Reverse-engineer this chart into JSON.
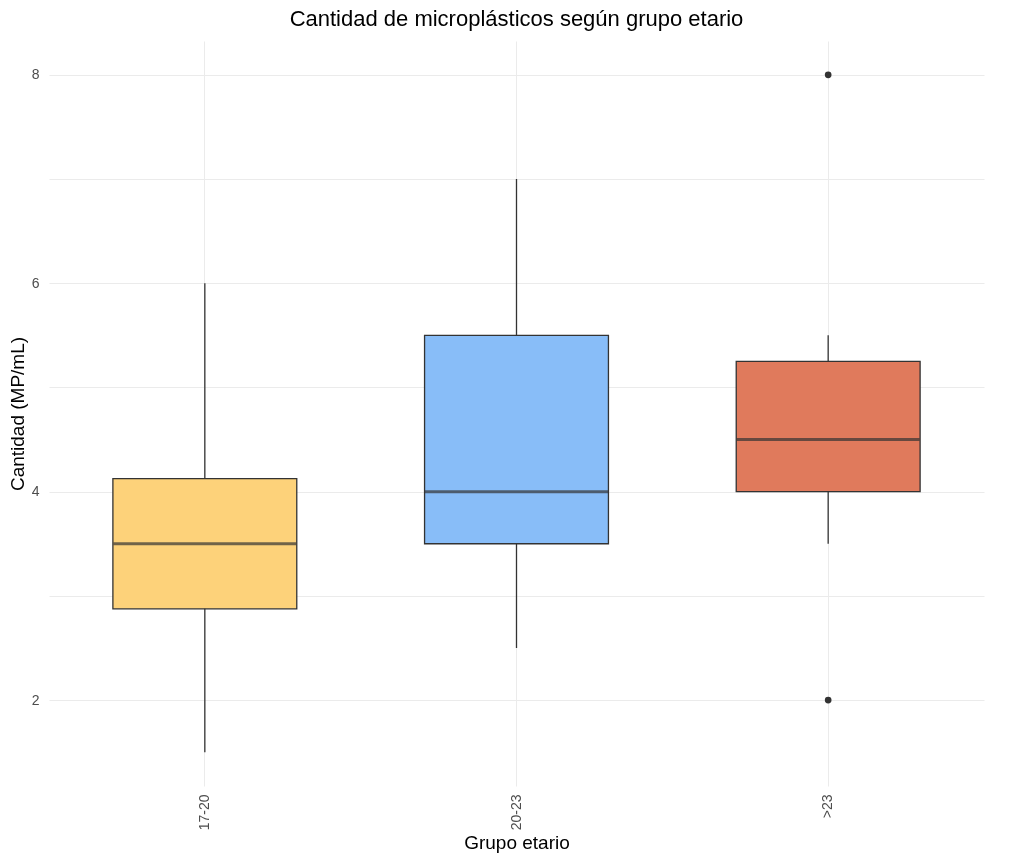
{
  "chart_data": {
    "type": "box",
    "title": "Cantidad de microplásticos según grupo etario",
    "xlabel": "Grupo etario",
    "ylabel": "Cantidad (MP/mL)",
    "categories": [
      "17-20",
      "20-23",
      ">23"
    ],
    "colors": [
      "#fdd27a",
      "#88bdf8",
      "#e07a5c"
    ],
    "boxes": [
      {
        "low": 1.5,
        "q1": 2.875,
        "median": 3.5,
        "q3": 4.125,
        "high": 6
      },
      {
        "low": 2.5,
        "q1": 3.5,
        "median": 4,
        "q3": 5.5,
        "high": 7
      },
      {
        "low": 3.5,
        "q1": 4,
        "median": 4.5,
        "q3": 5.25,
        "high": 5.5,
        "outliers": [
          2,
          8
        ]
      }
    ],
    "ylim": [
      1.175,
      8.325
    ],
    "yticks": [
      2,
      {
        "value": 3,
        "label": null
      },
      4,
      {
        "value": 5,
        "label": null
      },
      6,
      {
        "value": 7,
        "label": null
      },
      8
    ],
    "grid": true
  }
}
